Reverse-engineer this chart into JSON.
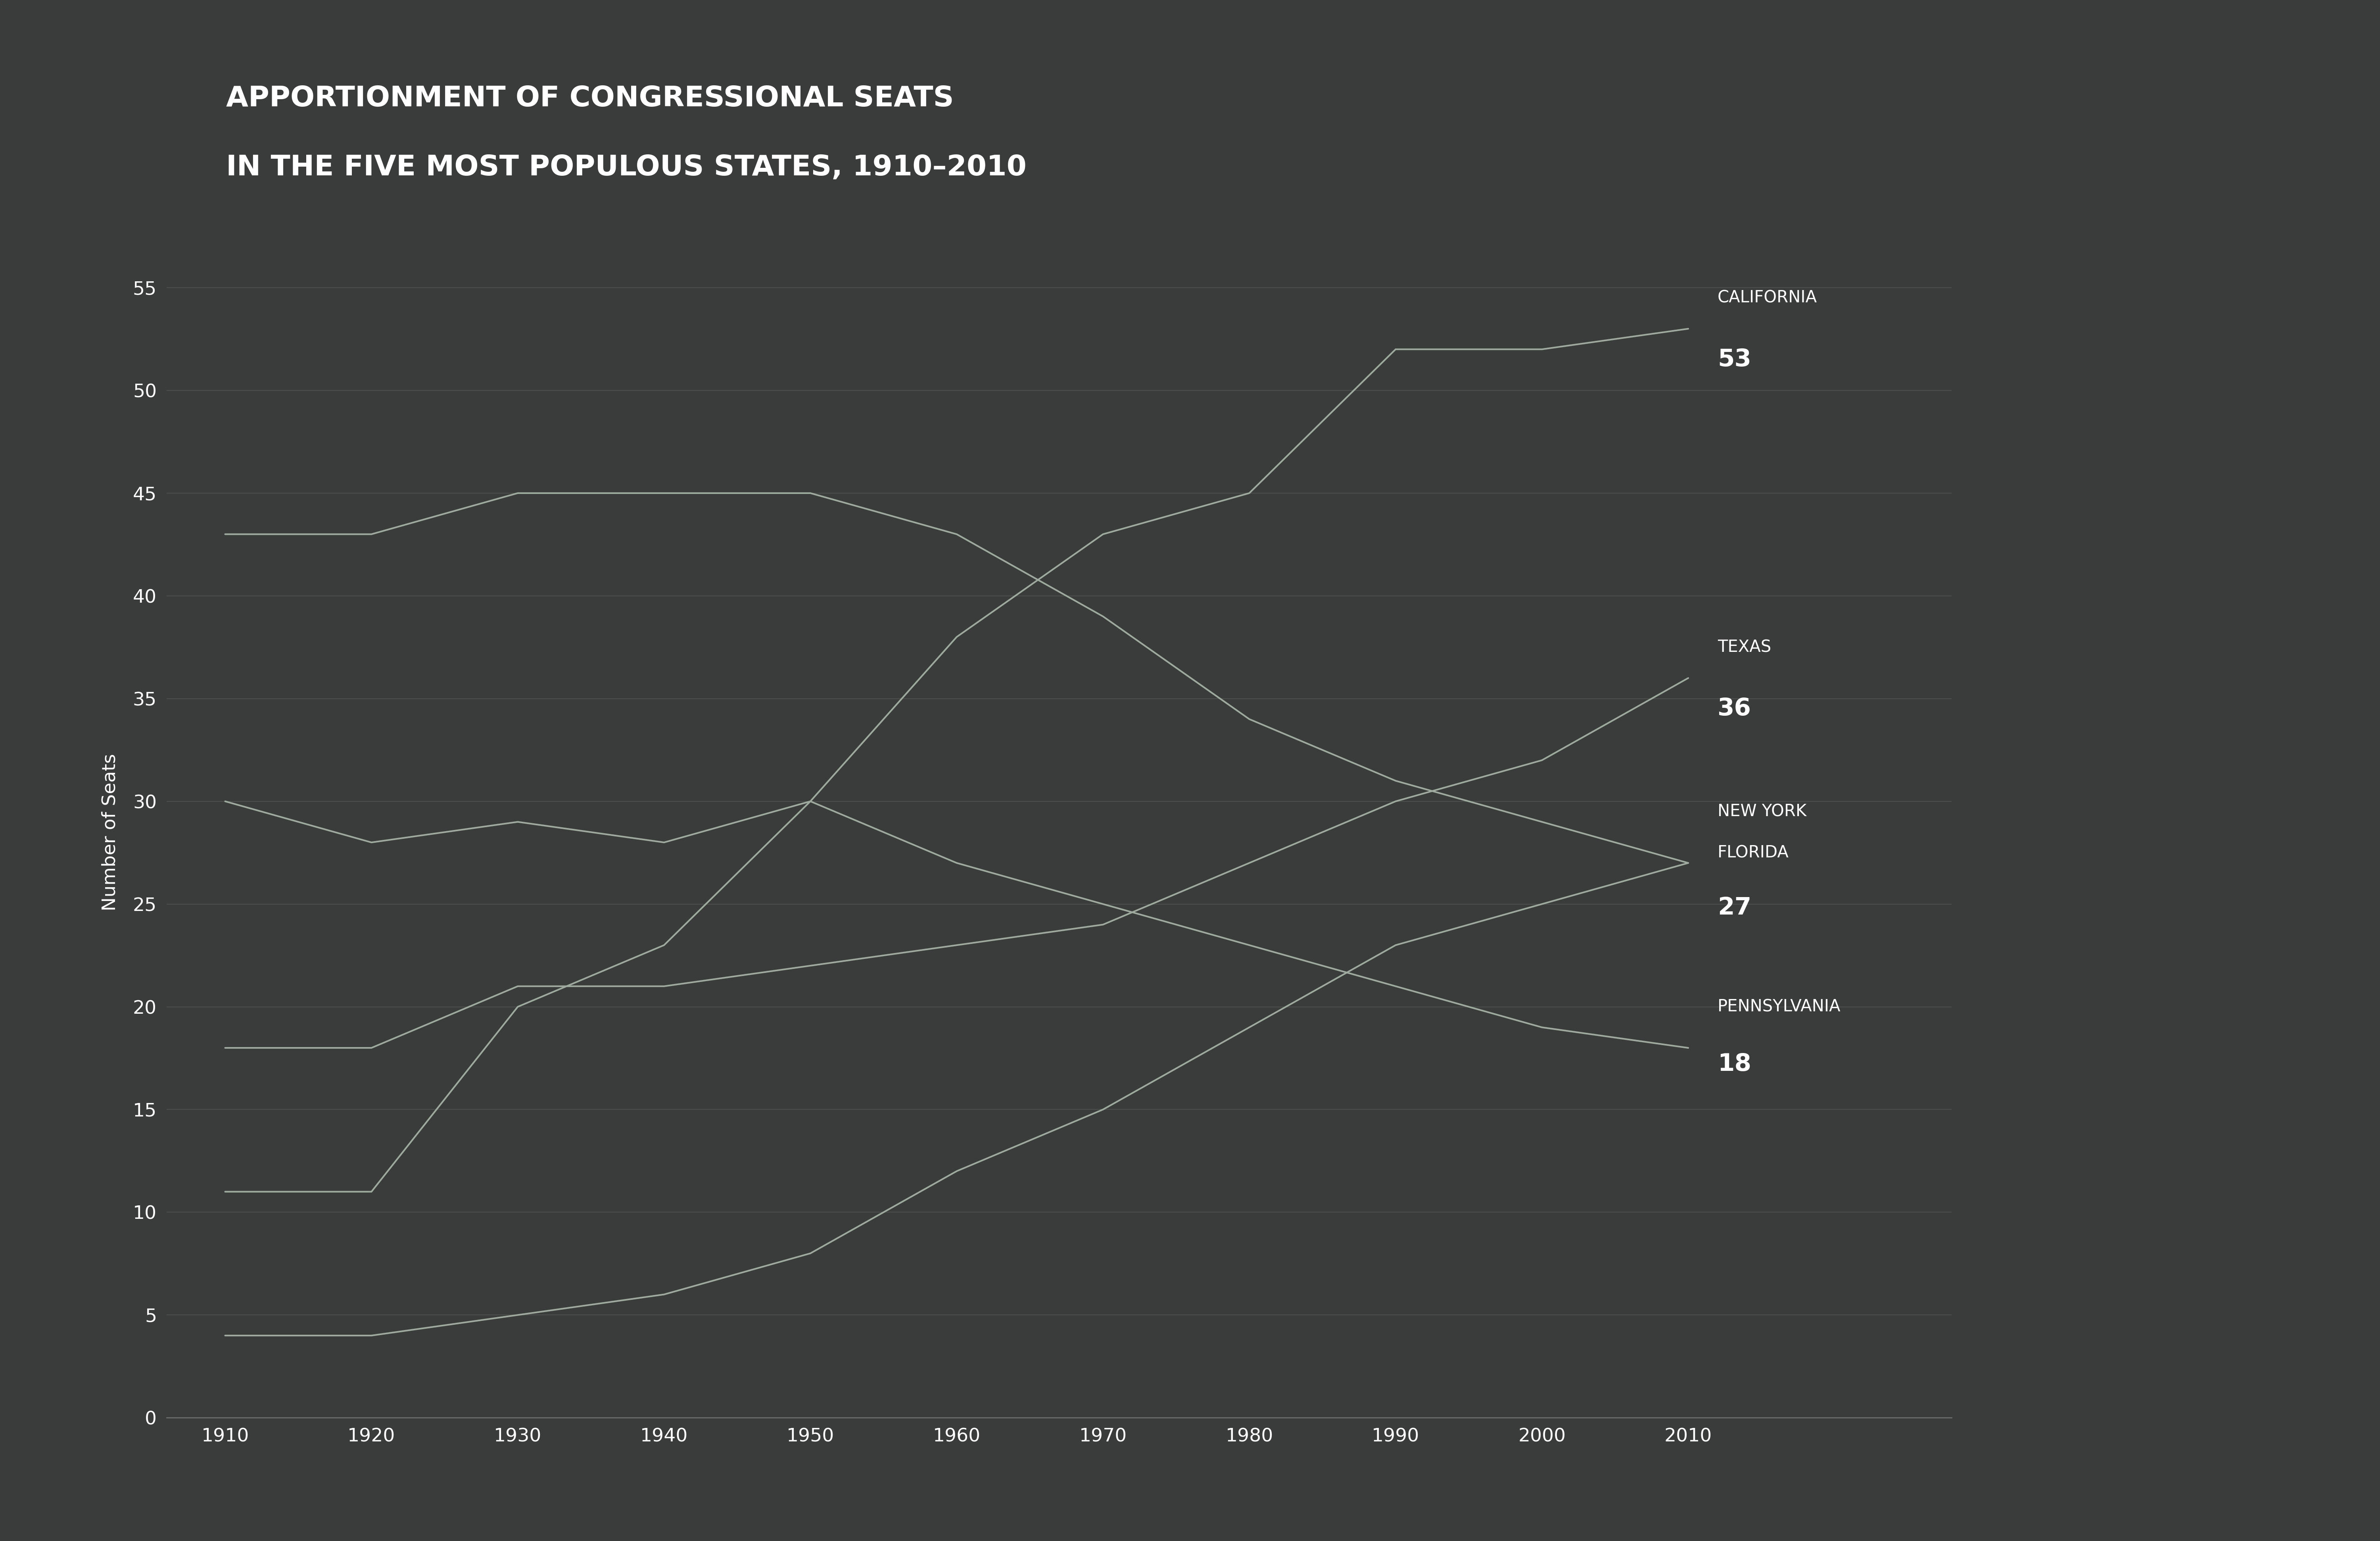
{
  "title_line1": "APPORTIONMENT OF CONGRESSIONAL SEATS",
  "title_line2": "IN THE FIVE MOST POPULOUS STATES, 1910–2010",
  "background_color": "#3a3c3c",
  "text_color": "#ffffff",
  "line_color": "#9eaa9e",
  "ylabel": "Number of Seats",
  "years": [
    1910,
    1920,
    1930,
    1940,
    1950,
    1960,
    1970,
    1980,
    1990,
    2000,
    2010
  ],
  "states": {
    "NewYork": {
      "values": [
        43,
        43,
        45,
        45,
        45,
        43,
        39,
        34,
        31,
        29,
        27
      ],
      "label": "NEW YORK",
      "end_value": "27"
    },
    "Pennsylvania": {
      "values": [
        30,
        28,
        29,
        28,
        30,
        27,
        25,
        23,
        21,
        19,
        18
      ],
      "label": "PENNSYLVANIA",
      "end_value": "18"
    },
    "California": {
      "values": [
        11,
        11,
        20,
        23,
        30,
        38,
        43,
        45,
        52,
        52,
        53
      ],
      "label": "CALIFORNIA",
      "end_value": "53"
    },
    "Texas": {
      "values": [
        18,
        18,
        21,
        21,
        22,
        23,
        24,
        27,
        30,
        32,
        36
      ],
      "label": "TEXAS",
      "end_value": "36"
    },
    "Florida": {
      "values": [
        4,
        4,
        5,
        6,
        8,
        12,
        15,
        19,
        23,
        25,
        27
      ],
      "label": "FLORIDA",
      "end_value": "27"
    }
  },
  "ylim": [
    0,
    57
  ],
  "yticks": [
    0,
    5,
    10,
    15,
    20,
    25,
    30,
    35,
    40,
    45,
    50,
    55
  ],
  "xlim": [
    1906,
    2028
  ],
  "xticks": [
    1910,
    1920,
    1930,
    1940,
    1950,
    1960,
    1970,
    1980,
    1990,
    2000,
    2010
  ],
  "title_fontsize": 52,
  "axis_label_fontsize": 34,
  "tick_fontsize": 34,
  "line_label_fontsize": 30,
  "line_value_fontsize": 44,
  "line_width": 3.0,
  "annotations": {
    "California": {
      "x": 2012,
      "y_label": 54.5,
      "y_value": 51.5
    },
    "Texas": {
      "x": 2012,
      "y_label": 37.5,
      "y_value": 34.5
    },
    "NewYork": {
      "x": 2012,
      "y_label": 29.5,
      "y_value": null
    },
    "Florida": {
      "x": 2012,
      "y_label": 27.5,
      "y_value": 24.8
    },
    "Pennsylvania": {
      "x": 2012,
      "y_label": 20.0,
      "y_value": 17.2
    }
  }
}
